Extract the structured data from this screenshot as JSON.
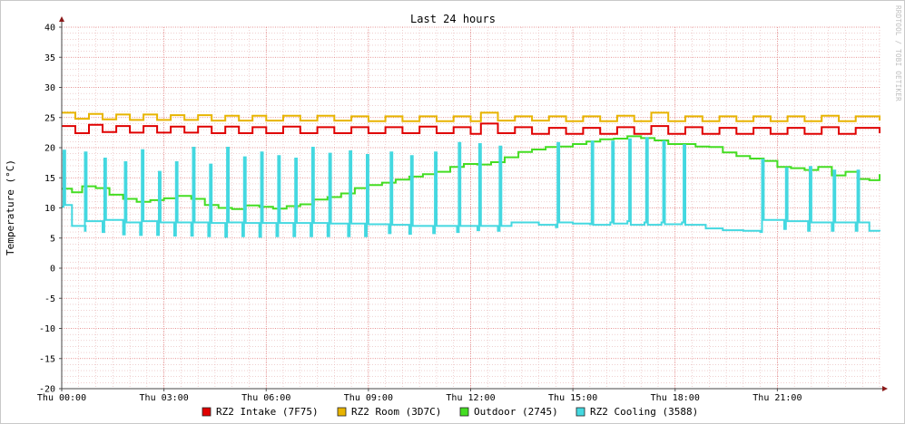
{
  "chart_data": {
    "type": "line",
    "title": "Last 24 hours",
    "xlabel": "",
    "ylabel": "Temperature (°C)",
    "watermark": "RRDTOOL / TOBI OETIKER",
    "ylim": [
      -20,
      40
    ],
    "yticks": [
      40,
      35,
      30,
      25,
      20,
      15,
      10,
      5,
      0,
      -5,
      -10,
      -15,
      -20
    ],
    "xlim_hours": [
      0,
      24
    ],
    "xticks": [
      {
        "hour": 0,
        "label": "Thu 00:00"
      },
      {
        "hour": 3,
        "label": "Thu 03:00"
      },
      {
        "hour": 6,
        "label": "Thu 06:00"
      },
      {
        "hour": 9,
        "label": "Thu 09:00"
      },
      {
        "hour": 12,
        "label": "Thu 12:00"
      },
      {
        "hour": 15,
        "label": "Thu 15:00"
      },
      {
        "hour": 18,
        "label": "Thu 18:00"
      },
      {
        "hour": 21,
        "label": "Thu 21:00"
      }
    ],
    "grid": true,
    "legend_position": "bottom",
    "series": [
      {
        "name": "RZ2 Intake (7F75)",
        "color": "#e00000",
        "points": [
          [
            0,
            23.6
          ],
          [
            0.4,
            22.4
          ],
          [
            0.8,
            23.8
          ],
          [
            1.2,
            22.6
          ],
          [
            1.6,
            23.6
          ],
          [
            2.0,
            22.5
          ],
          [
            2.4,
            23.6
          ],
          [
            2.8,
            22.5
          ],
          [
            3.2,
            23.5
          ],
          [
            3.6,
            22.5
          ],
          [
            4.0,
            23.5
          ],
          [
            4.4,
            22.4
          ],
          [
            4.8,
            23.5
          ],
          [
            5.2,
            22.4
          ],
          [
            5.6,
            23.4
          ],
          [
            6.0,
            22.4
          ],
          [
            6.5,
            23.5
          ],
          [
            7.0,
            22.4
          ],
          [
            7.5,
            23.4
          ],
          [
            8.0,
            22.4
          ],
          [
            8.5,
            23.4
          ],
          [
            9.0,
            22.4
          ],
          [
            9.5,
            23.4
          ],
          [
            10.0,
            22.4
          ],
          [
            10.5,
            23.5
          ],
          [
            11.0,
            22.4
          ],
          [
            11.5,
            23.4
          ],
          [
            12.0,
            22.3
          ],
          [
            12.3,
            24.0
          ],
          [
            12.8,
            22.4
          ],
          [
            13.3,
            23.4
          ],
          [
            13.8,
            22.3
          ],
          [
            14.3,
            23.3
          ],
          [
            14.8,
            22.3
          ],
          [
            15.3,
            23.3
          ],
          [
            15.8,
            22.3
          ],
          [
            16.3,
            23.4
          ],
          [
            16.8,
            22.3
          ],
          [
            17.3,
            23.6
          ],
          [
            17.8,
            22.3
          ],
          [
            18.3,
            23.4
          ],
          [
            18.8,
            22.3
          ],
          [
            19.3,
            23.3
          ],
          [
            19.8,
            22.3
          ],
          [
            20.3,
            23.3
          ],
          [
            20.8,
            22.3
          ],
          [
            21.3,
            23.3
          ],
          [
            21.8,
            22.3
          ],
          [
            22.3,
            23.4
          ],
          [
            22.8,
            22.3
          ],
          [
            23.3,
            23.3
          ],
          [
            24.0,
            22.4
          ]
        ]
      },
      {
        "name": "RZ2 Room (3D7C)",
        "color": "#e8b400",
        "points": [
          [
            0,
            25.8
          ],
          [
            0.4,
            24.8
          ],
          [
            0.8,
            25.6
          ],
          [
            1.2,
            24.7
          ],
          [
            1.6,
            25.5
          ],
          [
            2.0,
            24.6
          ],
          [
            2.4,
            25.5
          ],
          [
            2.8,
            24.6
          ],
          [
            3.2,
            25.4
          ],
          [
            3.6,
            24.6
          ],
          [
            4.0,
            25.4
          ],
          [
            4.4,
            24.5
          ],
          [
            4.8,
            25.3
          ],
          [
            5.2,
            24.5
          ],
          [
            5.6,
            25.3
          ],
          [
            6.0,
            24.5
          ],
          [
            6.5,
            25.3
          ],
          [
            7.0,
            24.5
          ],
          [
            7.5,
            25.3
          ],
          [
            8.0,
            24.5
          ],
          [
            8.5,
            25.2
          ],
          [
            9.0,
            24.4
          ],
          [
            9.5,
            25.2
          ],
          [
            10.0,
            24.4
          ],
          [
            10.5,
            25.2
          ],
          [
            11.0,
            24.4
          ],
          [
            11.5,
            25.2
          ],
          [
            12.0,
            24.4
          ],
          [
            12.3,
            25.8
          ],
          [
            12.8,
            24.5
          ],
          [
            13.3,
            25.2
          ],
          [
            13.8,
            24.5
          ],
          [
            14.3,
            25.2
          ],
          [
            14.8,
            24.4
          ],
          [
            15.3,
            25.2
          ],
          [
            15.8,
            24.4
          ],
          [
            16.3,
            25.3
          ],
          [
            16.8,
            24.4
          ],
          [
            17.3,
            25.8
          ],
          [
            17.8,
            24.4
          ],
          [
            18.3,
            25.2
          ],
          [
            18.8,
            24.4
          ],
          [
            19.3,
            25.2
          ],
          [
            19.8,
            24.4
          ],
          [
            20.3,
            25.2
          ],
          [
            20.8,
            24.4
          ],
          [
            21.3,
            25.2
          ],
          [
            21.8,
            24.4
          ],
          [
            22.3,
            25.3
          ],
          [
            22.8,
            24.4
          ],
          [
            23.3,
            25.2
          ],
          [
            24.0,
            24.5
          ]
        ]
      },
      {
        "name": "Outdoor (2745)",
        "color": "#44dd22",
        "points": [
          [
            0,
            13.2
          ],
          [
            0.3,
            12.6
          ],
          [
            0.6,
            13.6
          ],
          [
            1.0,
            13.3
          ],
          [
            1.4,
            12.2
          ],
          [
            1.8,
            11.5
          ],
          [
            2.2,
            11.0
          ],
          [
            2.6,
            11.3
          ],
          [
            3.0,
            11.6
          ],
          [
            3.4,
            12.0
          ],
          [
            3.8,
            11.5
          ],
          [
            4.2,
            10.5
          ],
          [
            4.6,
            10.0
          ],
          [
            5.0,
            9.8
          ],
          [
            5.4,
            10.4
          ],
          [
            5.8,
            10.2
          ],
          [
            6.2,
            9.9
          ],
          [
            6.6,
            10.3
          ],
          [
            7.0,
            10.6
          ],
          [
            7.4,
            11.4
          ],
          [
            7.8,
            11.8
          ],
          [
            8.2,
            12.4
          ],
          [
            8.6,
            13.3
          ],
          [
            9.0,
            13.8
          ],
          [
            9.4,
            14.2
          ],
          [
            9.8,
            14.7
          ],
          [
            10.2,
            15.2
          ],
          [
            10.6,
            15.6
          ],
          [
            11.0,
            16.0
          ],
          [
            11.4,
            16.8
          ],
          [
            11.8,
            17.3
          ],
          [
            12.2,
            17.2
          ],
          [
            12.6,
            17.6
          ],
          [
            13.0,
            18.4
          ],
          [
            13.4,
            19.3
          ],
          [
            13.8,
            19.7
          ],
          [
            14.2,
            20.1
          ],
          [
            14.6,
            20.2
          ],
          [
            15.0,
            20.6
          ],
          [
            15.4,
            21.0
          ],
          [
            15.8,
            21.4
          ],
          [
            16.2,
            21.5
          ],
          [
            16.6,
            21.9
          ],
          [
            17.0,
            21.6
          ],
          [
            17.4,
            21.2
          ],
          [
            17.8,
            20.6
          ],
          [
            18.2,
            20.6
          ],
          [
            18.6,
            20.2
          ],
          [
            19.0,
            20.1
          ],
          [
            19.4,
            19.2
          ],
          [
            19.8,
            18.6
          ],
          [
            20.2,
            18.2
          ],
          [
            20.6,
            17.8
          ],
          [
            21.0,
            16.8
          ],
          [
            21.4,
            16.6
          ],
          [
            21.8,
            16.3
          ],
          [
            22.2,
            16.8
          ],
          [
            22.6,
            15.4
          ],
          [
            23.0,
            16.0
          ],
          [
            23.4,
            14.8
          ],
          [
            23.7,
            14.6
          ],
          [
            24.0,
            15.6
          ]
        ]
      },
      {
        "name": "RZ2 Cooling (3588)",
        "color": "#44d8e0",
        "points": [
          [
            0,
            10.2
          ],
          [
            0.05,
            19.5
          ],
          [
            0.1,
            10.5
          ],
          [
            0.3,
            7.0
          ],
          [
            0.7,
            6.2
          ],
          [
            0.68,
            19.2
          ],
          [
            0.73,
            7.8
          ],
          [
            1.2,
            6.0
          ],
          [
            1.25,
            18.2
          ],
          [
            1.3,
            8.0
          ],
          [
            1.8,
            5.6
          ],
          [
            1.85,
            17.6
          ],
          [
            1.9,
            7.6
          ],
          [
            2.3,
            5.5
          ],
          [
            2.35,
            19.6
          ],
          [
            2.4,
            7.8
          ],
          [
            2.8,
            5.5
          ],
          [
            2.85,
            16.0
          ],
          [
            2.9,
            7.6
          ],
          [
            3.3,
            5.4
          ],
          [
            3.35,
            17.6
          ],
          [
            3.4,
            7.6
          ],
          [
            3.8,
            5.4
          ],
          [
            3.85,
            20.0
          ],
          [
            3.9,
            7.6
          ],
          [
            4.3,
            5.3
          ],
          [
            4.35,
            17.2
          ],
          [
            4.4,
            7.5
          ],
          [
            4.8,
            5.2
          ],
          [
            4.85,
            20.0
          ],
          [
            4.9,
            7.6
          ],
          [
            5.3,
            5.3
          ],
          [
            5.35,
            18.4
          ],
          [
            5.4,
            7.5
          ],
          [
            5.8,
            5.2
          ],
          [
            5.85,
            19.2
          ],
          [
            5.9,
            7.5
          ],
          [
            6.3,
            5.3
          ],
          [
            6.35,
            18.6
          ],
          [
            6.4,
            7.5
          ],
          [
            6.8,
            5.3
          ],
          [
            6.85,
            18.2
          ],
          [
            6.9,
            7.5
          ],
          [
            7.3,
            5.3
          ],
          [
            7.35,
            20.0
          ],
          [
            7.4,
            7.5
          ],
          [
            7.8,
            5.3
          ],
          [
            7.85,
            19.0
          ],
          [
            7.9,
            7.4
          ],
          [
            8.4,
            5.3
          ],
          [
            8.45,
            19.4
          ],
          [
            8.5,
            7.4
          ],
          [
            8.9,
            5.3
          ],
          [
            8.95,
            18.8
          ],
          [
            9.0,
            7.3
          ],
          [
            9.6,
            5.8
          ],
          [
            9.65,
            19.2
          ],
          [
            9.7,
            7.2
          ],
          [
            10.2,
            5.7
          ],
          [
            10.25,
            18.6
          ],
          [
            10.3,
            7.0
          ],
          [
            10.9,
            5.8
          ],
          [
            10.95,
            19.2
          ],
          [
            11.0,
            7.0
          ],
          [
            11.6,
            6.0
          ],
          [
            11.65,
            20.8
          ],
          [
            11.7,
            7.0
          ],
          [
            12.2,
            6.3
          ],
          [
            12.25,
            20.6
          ],
          [
            12.3,
            7.0
          ],
          [
            12.8,
            6.2
          ],
          [
            12.85,
            20.2
          ],
          [
            12.9,
            7.0
          ],
          [
            13.2,
            7.6
          ],
          [
            14.0,
            7.2
          ],
          [
            14.5,
            6.8
          ],
          [
            14.55,
            20.8
          ],
          [
            14.6,
            7.6
          ],
          [
            15.0,
            7.4
          ],
          [
            15.5,
            7.3
          ],
          [
            15.55,
            21.0
          ],
          [
            15.6,
            7.2
          ],
          [
            16.1,
            7.6
          ],
          [
            16.15,
            21.0
          ],
          [
            16.2,
            7.4
          ],
          [
            16.6,
            7.8
          ],
          [
            16.65,
            21.4
          ],
          [
            16.7,
            7.2
          ],
          [
            17.1,
            7.6
          ],
          [
            17.15,
            21.6
          ],
          [
            17.2,
            7.2
          ],
          [
            17.6,
            7.6
          ],
          [
            17.65,
            21.0
          ],
          [
            17.7,
            7.3
          ],
          [
            18.2,
            7.6
          ],
          [
            18.25,
            20.4
          ],
          [
            18.3,
            7.2
          ],
          [
            18.9,
            6.6
          ],
          [
            19.4,
            6.3
          ],
          [
            20.0,
            6.2
          ],
          [
            20.5,
            6.0
          ],
          [
            20.55,
            18.0
          ],
          [
            20.6,
            8.0
          ],
          [
            21.2,
            6.5
          ],
          [
            21.25,
            16.6
          ],
          [
            21.3,
            7.8
          ],
          [
            21.9,
            6.2
          ],
          [
            21.95,
            16.8
          ],
          [
            22.0,
            7.6
          ],
          [
            22.6,
            6.2
          ],
          [
            22.65,
            16.2
          ],
          [
            22.7,
            7.6
          ],
          [
            23.3,
            6.2
          ],
          [
            23.35,
            16.2
          ],
          [
            23.4,
            7.6
          ],
          [
            23.7,
            6.2
          ],
          [
            24.0,
            6.1
          ]
        ]
      }
    ]
  }
}
